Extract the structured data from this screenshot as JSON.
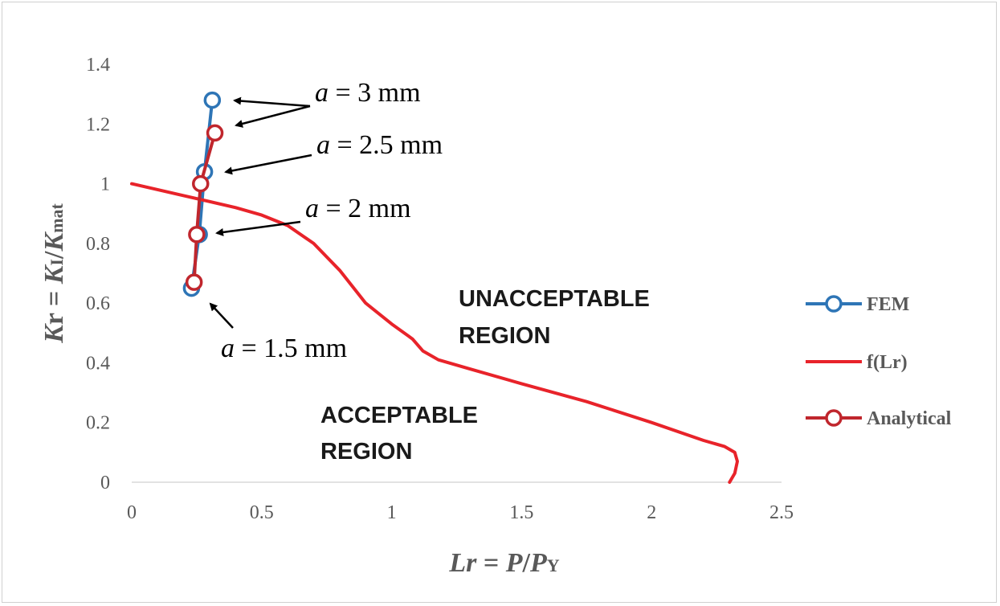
{
  "chart_data": {
    "type": "scatter",
    "xlabel": {
      "main": "Lr",
      "eq": " = ",
      "p": "P",
      "slash": "/",
      "py": "P",
      "py_sub": "Y"
    },
    "ylabel": {
      "main": "K",
      "main_sub": "r",
      "eq": " = ",
      "k1": "K",
      "k1_sub": "I",
      "slash": "/",
      "k2": "K",
      "k2_sub": "mat"
    },
    "xlim": [
      0,
      2.5
    ],
    "ylim": [
      0,
      1.4
    ],
    "xticks": [
      0,
      0.5,
      1,
      1.5,
      2,
      2.5
    ],
    "xtick_labels": [
      "0",
      "0.5",
      "1",
      "1.5",
      "2",
      "2.5"
    ],
    "yticks": [
      0,
      0.2,
      0.4,
      0.6,
      0.8,
      1,
      1.2,
      1.4
    ],
    "ytick_labels": [
      "0",
      "0.2",
      "0.4",
      "0.6",
      "0.8",
      "1",
      "1.2",
      "1.4"
    ],
    "legend_position": "right",
    "series": [
      {
        "name": "FEM",
        "color": "#2e75b6",
        "markers": true,
        "x": [
          0.23,
          0.26,
          0.28,
          0.31
        ],
        "y": [
          0.65,
          0.83,
          1.04,
          1.28
        ]
      },
      {
        "name": "f(Lr)",
        "color": "#e8232a",
        "markers": false,
        "x": [
          0,
          0.2,
          0.4,
          0.5,
          0.6,
          0.7,
          0.8,
          0.9,
          1.0,
          1.08,
          1.12,
          1.18,
          1.3,
          1.5,
          1.75,
          2.0,
          2.2,
          2.28,
          2.32,
          2.33,
          2.32,
          2.3
        ],
        "y": [
          1.0,
          0.96,
          0.92,
          0.895,
          0.86,
          0.8,
          0.71,
          0.6,
          0.53,
          0.48,
          0.44,
          0.41,
          0.38,
          0.33,
          0.27,
          0.2,
          0.14,
          0.12,
          0.1,
          0.07,
          0.03,
          0.0
        ]
      },
      {
        "name": "Analytical",
        "color": "#c0262d",
        "markers": true,
        "x": [
          0.24,
          0.25,
          0.265,
          0.32
        ],
        "y": [
          0.67,
          0.83,
          1.0,
          1.17
        ]
      }
    ],
    "annotations": [
      {
        "prefix": "a",
        "text": " = 3 mm"
      },
      {
        "prefix": "a",
        "text": " = 2.5 mm"
      },
      {
        "prefix": "a",
        "text": " = 2 mm"
      },
      {
        "prefix": "a",
        "text": " = 1.5 mm"
      }
    ],
    "regions": {
      "unacceptable": [
        "UNACCEPTABLE",
        "REGION"
      ],
      "acceptable": [
        "ACCEPTABLE",
        "REGION"
      ]
    }
  }
}
